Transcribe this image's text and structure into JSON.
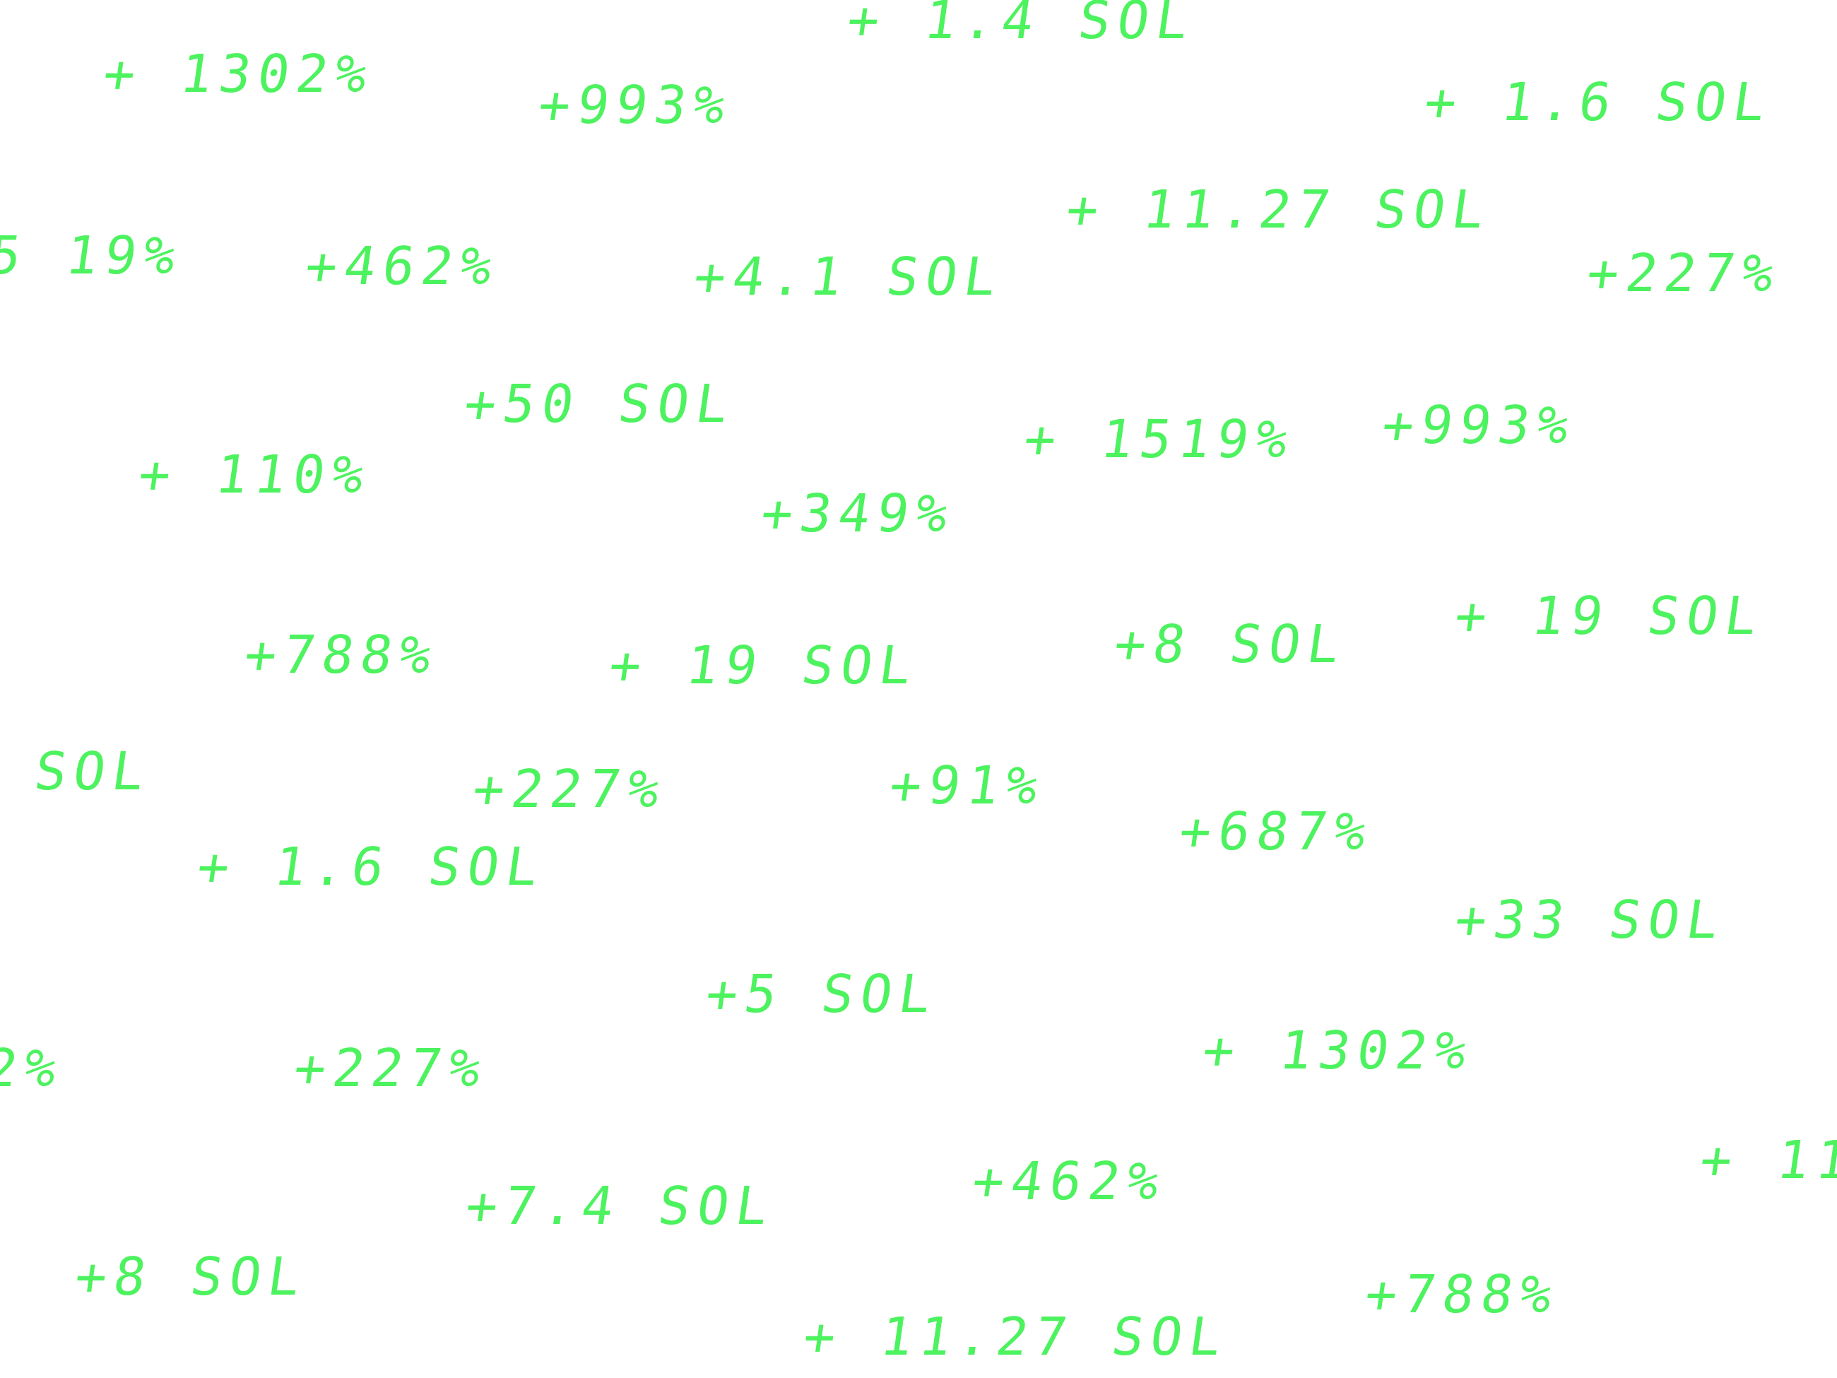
{
  "colors": {
    "background": "#ffffff",
    "gain_green": "#4df25f"
  },
  "gains": [
    "+ 1.4 SOL",
    "+ 1302%",
    "+993%",
    "+ 1.6 SOL",
    "+ 11.27 SOL",
    "5 19%",
    "+462%",
    "+4.1 SOL",
    "+227%",
    "+50 SOL",
    "+ 1519%",
    "+993%",
    "+ 110%",
    "+349%",
    "+788%",
    "+ 19 SOL",
    "+8 SOL",
    "+ 19 SOL",
    "SOL",
    "+227%",
    "+91%",
    "+687%",
    "+ 1.6 SOL",
    "+33 SOL",
    "+5 SOL",
    "2%",
    "+227%",
    "+ 1302%",
    "+ 110",
    "+462%",
    "+7.4 SOL",
    "+8 SOL",
    "+788%",
    "+ 11.27 SOL"
  ]
}
